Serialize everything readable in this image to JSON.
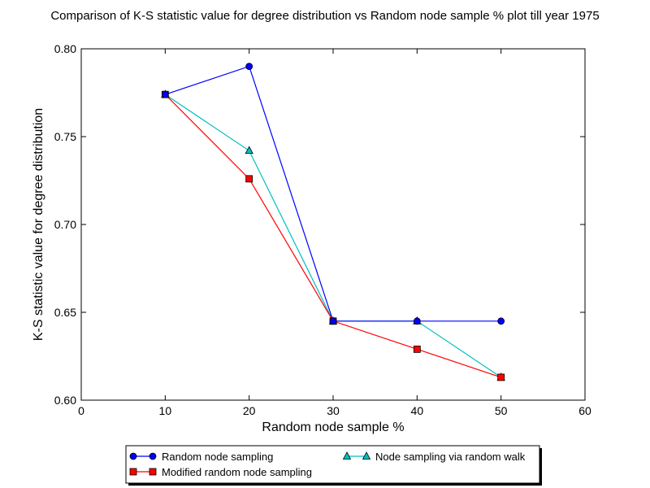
{
  "chart_data": {
    "type": "line",
    "title": "Comparison of K-S statistic value for degree distribution vs Random node sample % plot till year 1975",
    "xlabel": "Random node sample %",
    "ylabel": "K-S statistic value for degree distribution",
    "xlim": [
      0,
      60
    ],
    "ylim": [
      0.6,
      0.8
    ],
    "xticks": [
      0,
      10,
      20,
      30,
      40,
      50,
      60
    ],
    "yticks": [
      0.6,
      0.65,
      0.7,
      0.75,
      0.8
    ],
    "xtick_labels": [
      "0",
      "10",
      "20",
      "30",
      "40",
      "50",
      "60"
    ],
    "ytick_labels": [
      "0.60",
      "0.65",
      "0.70",
      "0.75",
      "0.80"
    ],
    "grid": false,
    "legend_placement": "bottom-center, below plot",
    "series": [
      {
        "name": "Random node sampling",
        "color": "#0000ff",
        "marker": "circle",
        "x": [
          10,
          20,
          30,
          40,
          50
        ],
        "y": [
          0.774,
          0.79,
          0.645,
          0.645,
          0.645
        ]
      },
      {
        "name": "Modified random node sampling",
        "color": "#ff0000",
        "marker": "square",
        "x": [
          10,
          20,
          30,
          40,
          50
        ],
        "y": [
          0.774,
          0.726,
          0.645,
          0.629,
          0.613
        ]
      },
      {
        "name": "Node sampling via random walk",
        "color": "#00bfbf",
        "marker": "triangle",
        "x": [
          10,
          20,
          30,
          40,
          50
        ],
        "y": [
          0.774,
          0.742,
          0.645,
          0.645,
          0.613
        ]
      }
    ]
  }
}
